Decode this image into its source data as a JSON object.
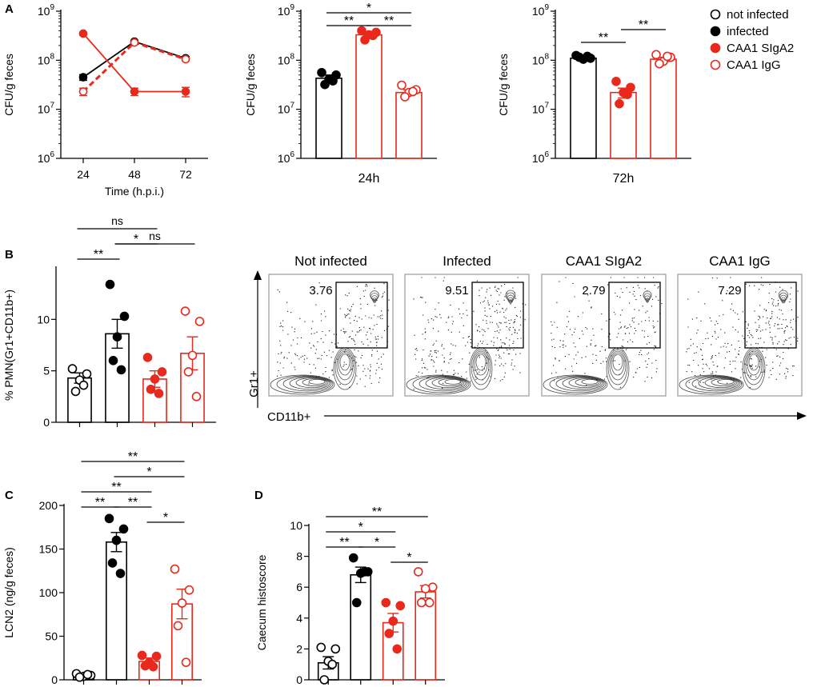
{
  "colors": {
    "black": "#000000",
    "red": "#e8291c",
    "white": "#ffffff",
    "grey": "#555555"
  },
  "legend": {
    "items": [
      {
        "label": "not infected",
        "marker": "open",
        "color": "#000000"
      },
      {
        "label": "infected",
        "marker": "filled",
        "color": "#000000"
      },
      {
        "label": "CAA1 SIgA2",
        "marker": "filled",
        "color": "#e8291c"
      },
      {
        "label": "CAA1 IgG",
        "marker": "open",
        "color": "#e8291c"
      }
    ]
  },
  "chart_data": [
    {
      "panel": "A",
      "type": "line",
      "title": "",
      "ylabel": "CFU/g feces",
      "xlabel": "Time (h.p.i.)",
      "yscale": "log",
      "ylim": [
        1000000,
        1000000000
      ],
      "yticks": [
        "10^6",
        "10^7",
        "10^8",
        "10^9"
      ],
      "x": [
        24,
        48,
        72
      ],
      "series": [
        {
          "name": "infected",
          "style": "solid",
          "color": "#000000",
          "marker": "filled",
          "values": [
            45000000,
            240000000,
            110000000
          ],
          "errors": [
            6000000,
            15000000,
            8000000
          ]
        },
        {
          "name": "CAA1 IgG",
          "style": "dashed",
          "color": "#e8291c",
          "marker": "open",
          "values": [
            23000000,
            230000000,
            105000000
          ],
          "errors": [
            4000000,
            15000000,
            8000000
          ]
        },
        {
          "name": "CAA1 SIgA2",
          "style": "solid",
          "color": "#e8291c",
          "marker": "filled",
          "values": [
            350000000,
            23000000,
            23000000
          ],
          "errors": [
            25000000,
            4000000,
            5000000
          ]
        }
      ]
    },
    {
      "panel": "A2",
      "type": "bar",
      "ylabel": "CFU/g feces",
      "xlabel": "24h",
      "yscale": "log",
      "ylim": [
        1000000,
        1000000000
      ],
      "yticks": [
        "10^6",
        "10^7",
        "10^8",
        "10^9"
      ],
      "groups": [
        {
          "name": "infected",
          "color": "#000000",
          "fill": "filled",
          "mean": 43000000,
          "sem": 7000000,
          "points": [
            56000000,
            50000000,
            41000000,
            32000000,
            38000000
          ]
        },
        {
          "name": "CAA1 SIgA2",
          "color": "#e8291c",
          "fill": "filled",
          "mean": 330000000,
          "sem": 40000000,
          "points": [
            400000000,
            370000000,
            330000000,
            260000000,
            320000000
          ]
        },
        {
          "name": "CAA1 IgG",
          "color": "#e8291c",
          "fill": "open",
          "mean": 22000000,
          "sem": 3000000,
          "points": [
            31000000,
            25000000,
            22000000,
            18000000,
            23000000
          ]
        }
      ],
      "significance": [
        {
          "from": 0,
          "to": 1,
          "label": "**"
        },
        {
          "from": 0,
          "to": 2,
          "label": "*"
        },
        {
          "from": 1,
          "to": 2,
          "label": "**"
        }
      ]
    },
    {
      "panel": "A3",
      "type": "bar",
      "ylabel": "CFU/g feces",
      "xlabel": "72h",
      "yscale": "log",
      "ylim": [
        1000000,
        1000000000
      ],
      "yticks": [
        "10^6",
        "10^7",
        "10^8",
        "10^9"
      ],
      "groups": [
        {
          "name": "infected",
          "color": "#000000",
          "fill": "filled",
          "mean": 110000000,
          "sem": 7000000,
          "points": [
            125000000,
            110000000,
            105000000,
            115000000,
            120000000
          ]
        },
        {
          "name": "CAA1 SIgA2",
          "color": "#e8291c",
          "fill": "filled",
          "mean": 22000000,
          "sem": 5000000,
          "points": [
            37000000,
            28000000,
            22000000,
            13000000,
            20000000
          ]
        },
        {
          "name": "CAA1 IgG",
          "color": "#e8291c",
          "fill": "open",
          "mean": 105000000,
          "sem": 10000000,
          "points": [
            130000000,
            115000000,
            95000000,
            85000000,
            120000000
          ]
        }
      ],
      "significance": [
        {
          "from": 0,
          "to": 1,
          "label": "**"
        },
        {
          "from": 1,
          "to": 2,
          "label": "**"
        }
      ]
    },
    {
      "panel": "B",
      "type": "bar",
      "ylabel": "% PMN(Gr1+CD11b+)",
      "yscale": "linear",
      "ylim": [
        0,
        15
      ],
      "yticks": [
        "0",
        "5",
        "10"
      ],
      "groups": [
        {
          "name": "not infected",
          "color": "#000000",
          "fill": "open",
          "mean": 4.3,
          "sem": 0.5,
          "points": [
            5.2,
            4.7,
            4.1,
            3.0,
            3.6
          ]
        },
        {
          "name": "infected",
          "color": "#000000",
          "fill": "filled",
          "mean": 8.6,
          "sem": 1.4,
          "points": [
            13.4,
            10.3,
            8.3,
            6.0,
            5.1
          ]
        },
        {
          "name": "CAA1 SIgA2",
          "color": "#e8291c",
          "fill": "filled",
          "mean": 4.2,
          "sem": 0.8,
          "points": [
            6.3,
            4.9,
            4.2,
            3.2,
            2.8
          ]
        },
        {
          "name": "CAA1 IgG",
          "color": "#e8291c",
          "fill": "open",
          "mean": 6.7,
          "sem": 1.6,
          "points": [
            10.8,
            9.8,
            6.5,
            4.9,
            2.5
          ]
        }
      ],
      "significance": [
        {
          "from": 0,
          "to": 2,
          "label": "ns",
          "level": 3
        },
        {
          "from": 0,
          "to": 1,
          "label": "**",
          "level": 1
        },
        {
          "from": 1,
          "to": 2,
          "label": "*",
          "level": 2
        },
        {
          "from": 1,
          "to": 3,
          "label": "ns",
          "level": 2
        }
      ]
    },
    {
      "panel": "C",
      "type": "bar",
      "ylabel": "LCN2 (ng/g feces)",
      "yscale": "linear",
      "ylim": [
        0,
        200
      ],
      "yticks": [
        "0",
        "50",
        "100",
        "150",
        "200"
      ],
      "groups": [
        {
          "name": "not infected",
          "color": "#000000",
          "fill": "open",
          "mean": 5,
          "sem": 1.5,
          "points": [
            7,
            5,
            4,
            3,
            6
          ]
        },
        {
          "name": "infected",
          "color": "#000000",
          "fill": "filled",
          "mean": 158,
          "sem": 11,
          "points": [
            185,
            173,
            160,
            134,
            122
          ]
        },
        {
          "name": "CAA1 SIgA2",
          "color": "#e8291c",
          "fill": "filled",
          "mean": 21,
          "sem": 4,
          "points": [
            28,
            27,
            20,
            16,
            15
          ]
        },
        {
          "name": "CAA1 IgG",
          "color": "#e8291c",
          "fill": "open",
          "mean": 87,
          "sem": 17,
          "points": [
            127,
            103,
            88,
            62,
            20
          ]
        }
      ],
      "significance": [
        {
          "from": 0,
          "to": 3,
          "label": "**",
          "level": 5
        },
        {
          "from": 1,
          "to": 3,
          "label": "*",
          "level": 4
        },
        {
          "from": 0,
          "to": 2,
          "label": "**",
          "level": 3
        },
        {
          "from": 0,
          "to": 1,
          "label": "**",
          "level": 2
        },
        {
          "from": 1,
          "to": 2,
          "label": "**",
          "level": 2
        },
        {
          "from": 2,
          "to": 3,
          "label": "*",
          "level": 1
        }
      ]
    },
    {
      "panel": "D",
      "type": "bar",
      "ylabel": "Caecum histoscore",
      "yscale": "linear",
      "ylim": [
        0,
        10
      ],
      "yticks": [
        "0",
        "2",
        "4",
        "6",
        "8",
        "10"
      ],
      "groups": [
        {
          "name": "not infected",
          "color": "#000000",
          "fill": "open",
          "mean": 1.1,
          "sem": 0.4,
          "points": [
            2.1,
            2.0,
            1.2,
            0.0,
            1.0
          ]
        },
        {
          "name": "infected",
          "color": "#000000",
          "fill": "filled",
          "mean": 6.8,
          "sem": 0.5,
          "points": [
            7.9,
            7.0,
            6.9,
            5.0,
            7.0
          ]
        },
        {
          "name": "CAA1 SIgA2",
          "color": "#e8291c",
          "fill": "filled",
          "mean": 3.7,
          "sem": 0.6,
          "points": [
            5.0,
            4.8,
            3.8,
            3.0,
            2.0
          ]
        },
        {
          "name": "CAA1 IgG",
          "color": "#e8291c",
          "fill": "open",
          "mean": 5.7,
          "sem": 0.4,
          "points": [
            7.0,
            6.0,
            5.9,
            5.0,
            5.0
          ]
        }
      ],
      "significance": [
        {
          "from": 0,
          "to": 3,
          "label": "**",
          "level": 4
        },
        {
          "from": 0,
          "to": 2,
          "label": "*",
          "level": 3
        },
        {
          "from": 0,
          "to": 1,
          "label": "**",
          "level": 2
        },
        {
          "from": 1,
          "to": 2,
          "label": "*",
          "level": 2
        },
        {
          "from": 2,
          "to": 3,
          "label": "*",
          "level": 1
        }
      ]
    }
  ],
  "flow": {
    "panel": "B2",
    "yaxis_label": "Gr1+",
    "xaxis_label": "CD11b+",
    "plots": [
      {
        "title": "Not infected",
        "gate_value": "3.76"
      },
      {
        "title": "Infected",
        "gate_value": "9.51"
      },
      {
        "title": "CAA1 SIgA2",
        "gate_value": "2.79"
      },
      {
        "title": "CAA1 IgG",
        "gate_value": "7.29"
      }
    ]
  },
  "panel_letters": {
    "a": "A",
    "b": "B",
    "c": "C",
    "d": "D"
  }
}
